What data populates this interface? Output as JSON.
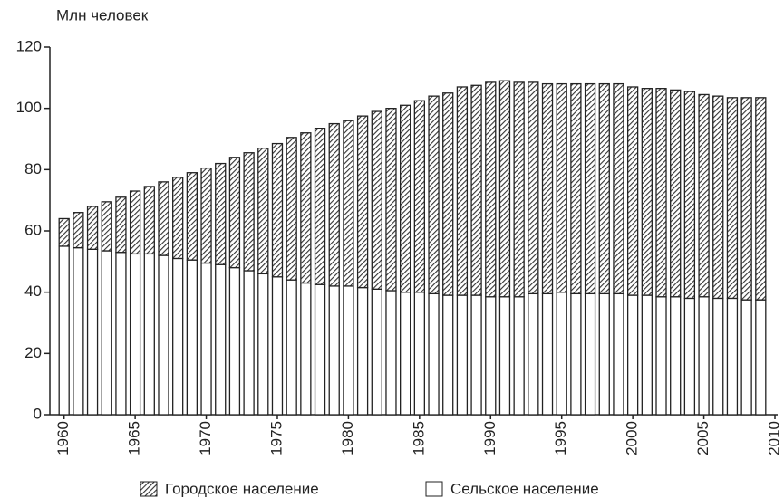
{
  "chart_data": {
    "type": "bar",
    "stacked": true,
    "y_label": "Млн человек",
    "x": [
      1960,
      1961,
      1962,
      1963,
      1964,
      1965,
      1966,
      1967,
      1968,
      1969,
      1970,
      1971,
      1972,
      1973,
      1974,
      1975,
      1976,
      1977,
      1978,
      1979,
      1980,
      1981,
      1982,
      1983,
      1984,
      1985,
      1986,
      1987,
      1988,
      1989,
      1990,
      1991,
      1992,
      1993,
      1994,
      1995,
      1996,
      1997,
      1998,
      1999,
      2000,
      2001,
      2002,
      2003,
      2004,
      2005,
      2006,
      2007,
      2008,
      2009
    ],
    "series": [
      {
        "name": "Городское население",
        "color": "#333333",
        "pattern": "hatch",
        "values": [
          9,
          11.5,
          14,
          16,
          18,
          20.5,
          22,
          24,
          26.5,
          28.5,
          31,
          33,
          36,
          38.5,
          41,
          43.5,
          46.5,
          49,
          51,
          53,
          54,
          56,
          58,
          59.5,
          61,
          62.5,
          64.5,
          66,
          68,
          68.5,
          70,
          70.5,
          70,
          69,
          68.5,
          68,
          68.5,
          68.5,
          68.5,
          68.5,
          68,
          67.5,
          68,
          67.5,
          67.5,
          66,
          66,
          65.5,
          66,
          66
        ]
      },
      {
        "name": "Сельское население",
        "color": "#ffffff",
        "pattern": "solid",
        "values": [
          55,
          54.5,
          54,
          53.5,
          53,
          52.5,
          52.5,
          52,
          51,
          50.5,
          49.5,
          49,
          48,
          47,
          46,
          45,
          44,
          43,
          42.5,
          42,
          42,
          41.5,
          41,
          40.5,
          40,
          40,
          39.5,
          39,
          39,
          39,
          38.5,
          38.5,
          38.5,
          39.5,
          39.5,
          40,
          39.5,
          39.5,
          39.5,
          39.5,
          39,
          39,
          38.5,
          38.5,
          38,
          38.5,
          38,
          38,
          37.5,
          37.5
        ]
      }
    ],
    "xlim": [
      1959,
      2010
    ],
    "xticks": [
      1960,
      1965,
      1970,
      1975,
      1980,
      1985,
      1990,
      1995,
      2000,
      2005,
      2010
    ],
    "ylim": [
      0,
      120
    ],
    "yticks": [
      0,
      20,
      40,
      60,
      80,
      100,
      120
    ],
    "grid": false
  }
}
